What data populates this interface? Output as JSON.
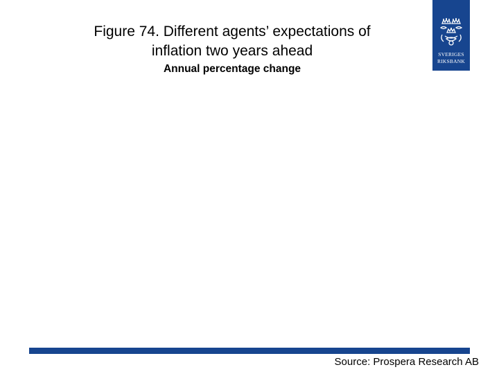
{
  "figure": {
    "title_line1": "Figure 74. Different agents’ expectations of",
    "title_line2": "inflation two years ahead",
    "subtitle": "Annual percentage change"
  },
  "logo": {
    "icon": "riksbank-crown-emblem-icon",
    "text_line1": "SVERIGES",
    "text_line2": "RIKSBANK",
    "color": "#17458f"
  },
  "footer": {
    "source": "Source: Prospera Research AB",
    "bar_color": "#17458f"
  }
}
